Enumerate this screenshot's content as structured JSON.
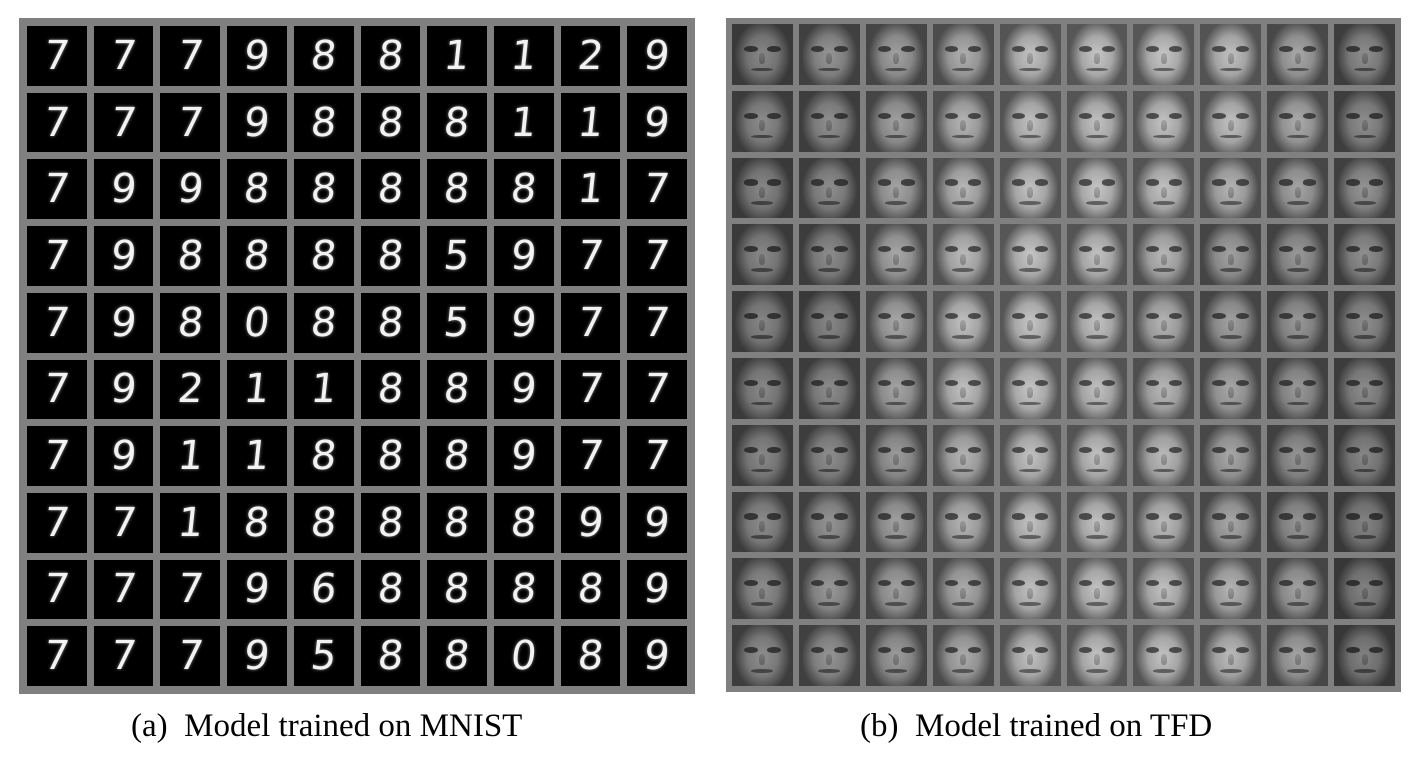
{
  "figure": {
    "panel_a": {
      "caption": "(a) Model trained on MNIST",
      "digits": [
        [
          "7",
          "7",
          "7",
          "9",
          "8",
          "8",
          "1",
          "1",
          "2",
          "9"
        ],
        [
          "7",
          "7",
          "7",
          "9",
          "8",
          "8",
          "8",
          "1",
          "1",
          "9"
        ],
        [
          "7",
          "9",
          "9",
          "8",
          "8",
          "8",
          "8",
          "8",
          "1",
          "7"
        ],
        [
          "7",
          "9",
          "8",
          "8",
          "8",
          "8",
          "5",
          "9",
          "7",
          "7"
        ],
        [
          "7",
          "9",
          "8",
          "0",
          "8",
          "8",
          "5",
          "9",
          "7",
          "7"
        ],
        [
          "7",
          "9",
          "2",
          "1",
          "1",
          "8",
          "8",
          "9",
          "7",
          "7"
        ],
        [
          "7",
          "9",
          "1",
          "1",
          "8",
          "8",
          "8",
          "9",
          "7",
          "7"
        ],
        [
          "7",
          "7",
          "1",
          "8",
          "8",
          "8",
          "8",
          "8",
          "9",
          "9"
        ],
        [
          "7",
          "7",
          "7",
          "9",
          "6",
          "8",
          "8",
          "8",
          "8",
          "9"
        ],
        [
          "7",
          "7",
          "7",
          "9",
          "5",
          "8",
          "8",
          "0",
          "8",
          "9"
        ]
      ]
    },
    "panel_b": {
      "caption": "(b) Model trained on TFD",
      "brightness": [
        [
          0.35,
          0.45,
          0.55,
          0.65,
          0.8,
          0.82,
          0.82,
          0.78,
          0.6,
          0.4
        ],
        [
          0.38,
          0.42,
          0.55,
          0.7,
          0.78,
          0.8,
          0.8,
          0.78,
          0.62,
          0.4
        ],
        [
          0.35,
          0.4,
          0.58,
          0.72,
          0.8,
          0.82,
          0.8,
          0.7,
          0.58,
          0.45
        ],
        [
          0.36,
          0.38,
          0.6,
          0.75,
          0.82,
          0.8,
          0.72,
          0.55,
          0.48,
          0.42
        ],
        [
          0.35,
          0.35,
          0.6,
          0.78,
          0.82,
          0.8,
          0.7,
          0.55,
          0.48,
          0.4
        ],
        [
          0.36,
          0.38,
          0.58,
          0.78,
          0.82,
          0.78,
          0.72,
          0.6,
          0.48,
          0.38
        ],
        [
          0.36,
          0.4,
          0.5,
          0.7,
          0.8,
          0.8,
          0.75,
          0.6,
          0.45,
          0.35
        ],
        [
          0.38,
          0.45,
          0.55,
          0.7,
          0.8,
          0.8,
          0.75,
          0.6,
          0.45,
          0.32
        ],
        [
          0.4,
          0.48,
          0.55,
          0.62,
          0.78,
          0.8,
          0.78,
          0.7,
          0.55,
          0.3
        ],
        [
          0.4,
          0.45,
          0.5,
          0.62,
          0.78,
          0.8,
          0.8,
          0.75,
          0.58,
          0.3
        ]
      ]
    }
  }
}
